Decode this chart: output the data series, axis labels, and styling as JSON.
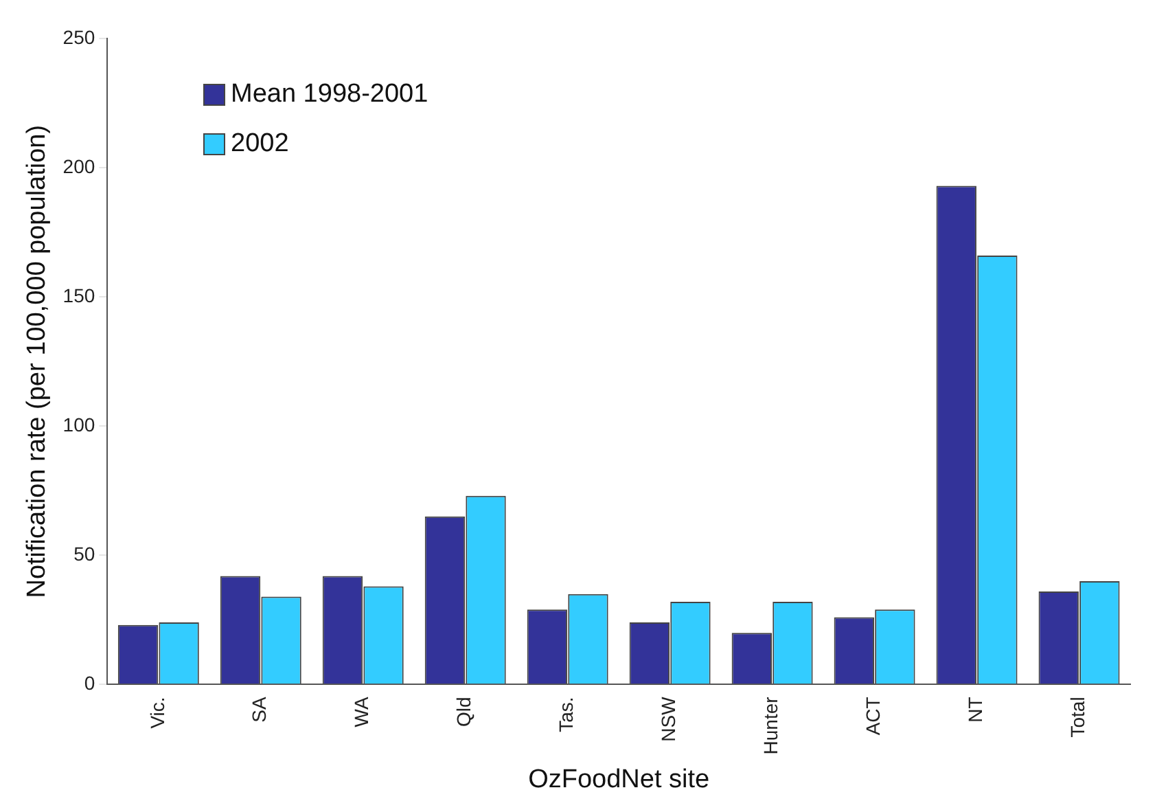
{
  "chart_data": {
    "type": "bar",
    "xlabel": "OzFoodNet site",
    "ylabel": "Notification rate (per 100,000 population)",
    "categories": [
      "Vic.",
      "SA",
      "WA",
      "Qld",
      "Tas.",
      "NSW",
      "Hunter",
      "ACT",
      "NT",
      "Total"
    ],
    "series": [
      {
        "name": "Mean 1998-2001",
        "color": "#333399",
        "values": [
          23,
          42,
          42,
          65,
          29,
          24,
          20,
          26,
          193,
          36
        ]
      },
      {
        "name": "2002",
        "color": "#33ccff",
        "values": [
          24,
          34,
          38,
          73,
          35,
          32,
          32,
          29,
          166,
          40
        ]
      }
    ],
    "ylim": [
      0,
      250
    ],
    "yticks": [
      0,
      50,
      100,
      150,
      200,
      250
    ],
    "grid": false,
    "legend": "top left"
  }
}
